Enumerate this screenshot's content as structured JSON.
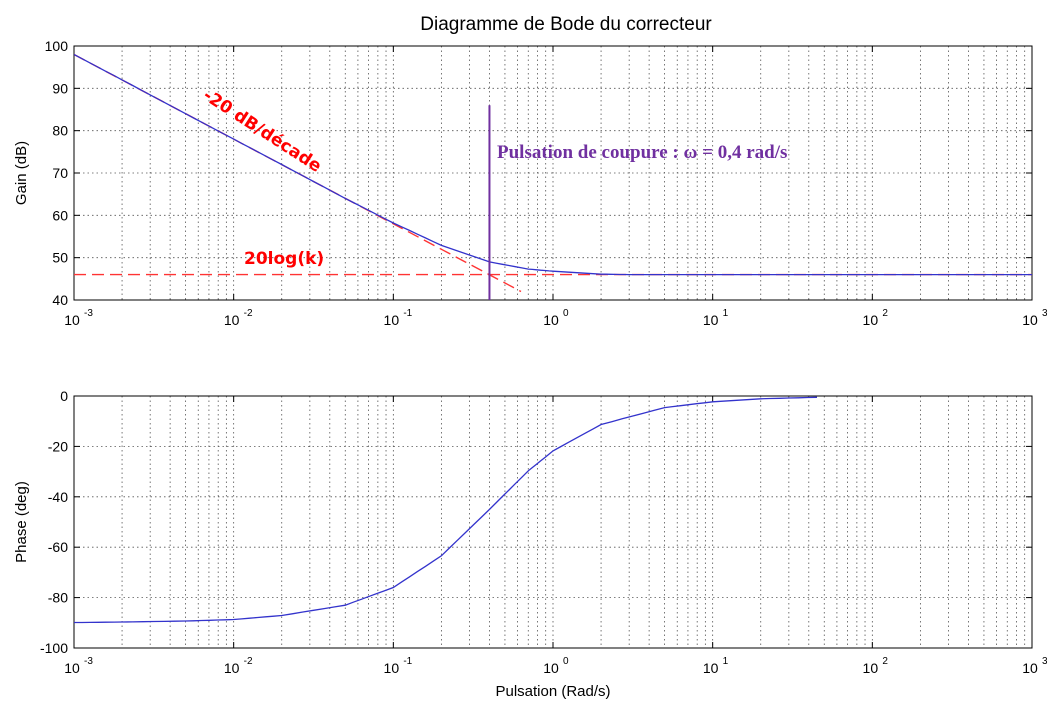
{
  "chart_data": [
    {
      "type": "line",
      "title": "Diagramme de Bode du correcteur",
      "xlabel": "",
      "ylabel": "Gain (dB)",
      "xscale": "log",
      "xlim": [
        0.001,
        1000
      ],
      "ylim": [
        40,
        100
      ],
      "x_ticks": [
        {
          "base": "10",
          "exp": "-3",
          "value": 0.001
        },
        {
          "base": "10",
          "exp": "-2",
          "value": 0.01
        },
        {
          "base": "10",
          "exp": "-1",
          "value": 0.1
        },
        {
          "base": "10",
          "exp": "0",
          "value": 1
        },
        {
          "base": "10",
          "exp": "1",
          "value": 10
        },
        {
          "base": "10",
          "exp": "2",
          "value": 100
        },
        {
          "base": "10",
          "exp": "3",
          "value": 1000
        }
      ],
      "y_ticks": [
        "40",
        "50",
        "60",
        "70",
        "80",
        "90",
        "100"
      ],
      "grid": true,
      "series": [
        {
          "color": "#3333cc",
          "x": [
            0.001,
            0.002,
            0.005,
            0.01,
            0.02,
            0.05,
            0.1,
            0.2,
            0.4,
            0.7,
            1,
            2,
            3,
            10,
            100,
            1000
          ],
          "y": [
            98,
            92,
            84,
            78,
            72,
            64,
            58.2,
            52.9,
            49,
            47.3,
            46.8,
            46.1,
            46,
            46,
            46,
            46
          ]
        }
      ],
      "asymptotes": [
        {
          "color": "#ff3333",
          "dash": true,
          "x": [
            0.001,
            0.63
          ],
          "y": [
            98,
            42
          ]
        },
        {
          "color": "#ff3333",
          "dash": true,
          "x": [
            0.001,
            1000
          ],
          "y": [
            46,
            46
          ]
        }
      ],
      "marker_line": {
        "color": "#7030a0",
        "x": 0.4,
        "y": [
          40,
          86
        ]
      },
      "annotations": [
        {
          "text": "-20 dB/décade",
          "color": "#ff0000"
        },
        {
          "text": "20log(k)",
          "color": "#ff0000"
        },
        {
          "text": "Pulsation de coupure : ω = 0,4 rad/s",
          "color": "#7030a0"
        }
      ]
    },
    {
      "type": "line",
      "title": "",
      "xlabel": "Pulsation (Rad/s)",
      "ylabel": "Phase (deg)",
      "xscale": "log",
      "xlim": [
        0.001,
        1000
      ],
      "ylim": [
        -100,
        0
      ],
      "x_ticks": [
        {
          "base": "10",
          "exp": "-3",
          "value": 0.001
        },
        {
          "base": "10",
          "exp": "-2",
          "value": 0.01
        },
        {
          "base": "10",
          "exp": "-1",
          "value": 0.1
        },
        {
          "base": "10",
          "exp": "0",
          "value": 1
        },
        {
          "base": "10",
          "exp": "1",
          "value": 10
        },
        {
          "base": "10",
          "exp": "2",
          "value": 100
        },
        {
          "base": "10",
          "exp": "3",
          "value": 1000
        }
      ],
      "y_ticks": [
        "-100",
        "-80",
        "-60",
        "-40",
        "-20",
        "0"
      ],
      "grid": true,
      "series": [
        {
          "color": "#3333cc",
          "x": [
            0.001,
            0.002,
            0.005,
            0.01,
            0.02,
            0.05,
            0.1,
            0.2,
            0.4,
            0.7,
            1,
            2,
            5,
            10,
            20,
            45
          ],
          "y": [
            -89.9,
            -89.7,
            -89.3,
            -88.7,
            -87.1,
            -83,
            -76,
            -63.4,
            -45,
            -29.7,
            -21.8,
            -11.3,
            -4.6,
            -2.3,
            -1.1,
            -0.5
          ]
        }
      ]
    }
  ]
}
